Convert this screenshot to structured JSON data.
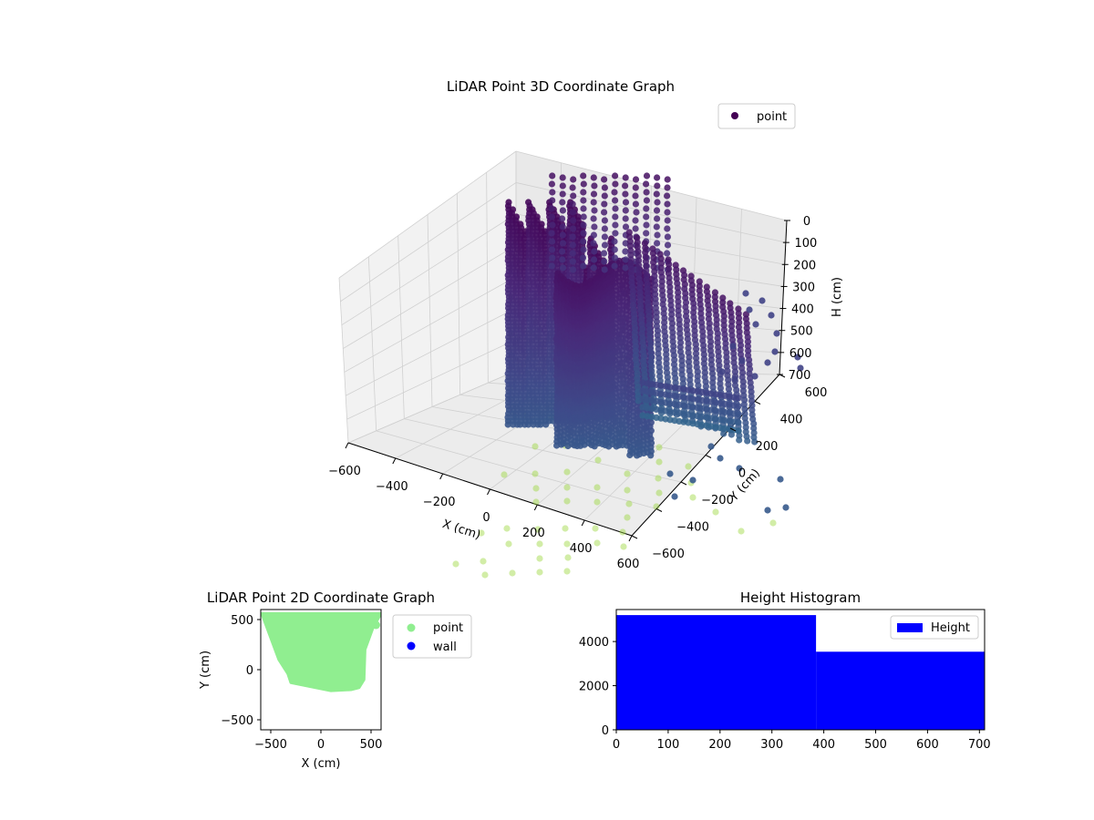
{
  "chart_data": [
    {
      "type": "scatter",
      "title": "LiDAR Point 3D Coordinate Graph",
      "xlabel": "X (cm)",
      "ylabel": "Y (cm)",
      "zlabel": "H (cm)",
      "xticks": [
        "−600",
        "−400",
        "−200",
        "0",
        "200",
        "400",
        "600"
      ],
      "yticks": [
        "−600",
        "−400",
        "−200",
        "0",
        "200",
        "400",
        "600"
      ],
      "zticks": [
        "0",
        "100",
        "200",
        "300",
        "400",
        "500",
        "600",
        "700"
      ],
      "xlim": [
        -600,
        600
      ],
      "ylim": [
        -600,
        600
      ],
      "zlim": [
        700,
        0
      ],
      "legend": [
        "point"
      ],
      "legend_position": "top-right",
      "grid": true,
      "colormap": "viridis",
      "series_color": "#3b0f5c"
    },
    {
      "type": "scatter",
      "title": "LiDAR Point 2D Coordinate Graph",
      "xlabel": "X (cm)",
      "ylabel": "Y (cm)",
      "xticks": [
        "−500",
        "0",
        "500"
      ],
      "yticks": [
        "−500",
        "0",
        "500"
      ],
      "xlim": [
        -600,
        600
      ],
      "ylim": [
        -600,
        600
      ],
      "series": [
        {
          "name": "point",
          "color": "#90ee90"
        },
        {
          "name": "wall",
          "color": "#0000ff"
        }
      ],
      "legend_position": "outside-right",
      "region_outline": [
        [
          -590,
          560
        ],
        [
          600,
          560
        ],
        [
          520,
          420
        ],
        [
          440,
          200
        ],
        [
          430,
          -100
        ],
        [
          380,
          -180
        ],
        [
          300,
          -200
        ],
        [
          100,
          -210
        ],
        [
          -300,
          -130
        ],
        [
          -330,
          -40
        ],
        [
          -420,
          100
        ],
        [
          -550,
          450
        ]
      ]
    },
    {
      "type": "bar",
      "title": "Height Histogram",
      "xlim": [
        0,
        710
      ],
      "ylim": [
        0,
        5450
      ],
      "xticks": [
        "0",
        "100",
        "200",
        "300",
        "400",
        "500",
        "600",
        "700"
      ],
      "yticks": [
        "0",
        "2000",
        "4000"
      ],
      "series": [
        {
          "name": "Height",
          "color": "#0000ff"
        }
      ],
      "bins": [
        {
          "start": 0,
          "end": 385,
          "count": 5200
        },
        {
          "start": 385,
          "end": 710,
          "count": 3540
        }
      ],
      "legend_position": "top-right"
    }
  ]
}
